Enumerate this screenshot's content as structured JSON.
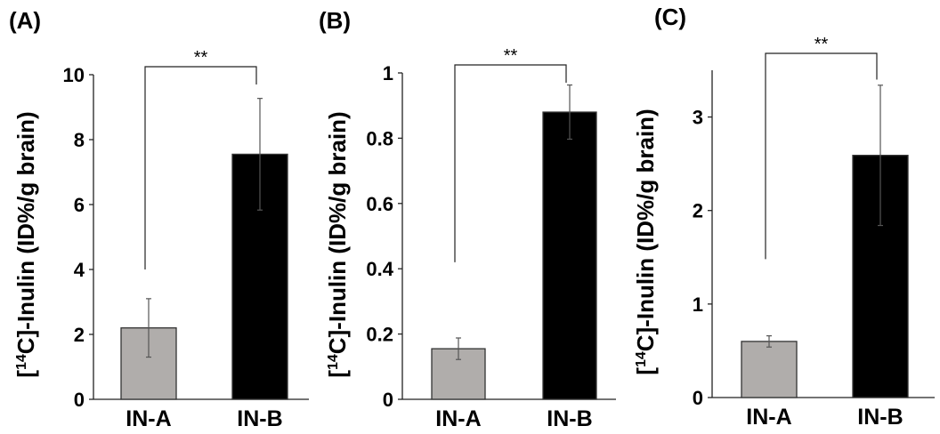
{
  "chart_data": [
    {
      "type": "bar",
      "panel_label": "(A)",
      "categories": [
        "IN-A",
        "IN-B"
      ],
      "values": [
        2.2,
        7.55
      ],
      "errors": [
        0.9,
        1.72
      ],
      "ylabel_pre": "[",
      "ylabel_sup": "14",
      "ylabel_post": "C]-Inulin (ID%/g brain)",
      "ylim": [
        0,
        10
      ],
      "yticks": [
        0,
        2,
        4,
        6,
        8,
        10
      ],
      "ytick_labels": [
        "0",
        "2",
        "4",
        "6",
        "8",
        "10"
      ],
      "significance": "**",
      "bracket_ends": [
        4.0,
        9.7
      ],
      "bar_colors": [
        "#b0adab",
        "#000000"
      ]
    },
    {
      "type": "bar",
      "panel_label": "(B)",
      "categories": [
        "IN-A",
        "IN-B"
      ],
      "values": [
        0.155,
        0.88
      ],
      "errors": [
        0.033,
        0.083
      ],
      "ylabel_pre": "[",
      "ylabel_sup": "14",
      "ylabel_post": "C]-Inulin (ID%/g brain)",
      "ylim": [
        0,
        1
      ],
      "yticks": [
        0,
        0.2,
        0.4,
        0.6,
        0.8,
        1
      ],
      "ytick_labels": [
        "0",
        "0.2",
        "0.4",
        "0.6",
        "0.8",
        "1"
      ],
      "significance": "**",
      "bracket_ends": [
        0.42,
        0.97
      ],
      "bar_colors": [
        "#b0adab",
        "#000000"
      ]
    },
    {
      "type": "bar",
      "panel_label": "(C)",
      "categories": [
        "IN-A",
        "IN-B"
      ],
      "values": [
        0.6,
        2.59
      ],
      "errors": [
        0.06,
        0.75
      ],
      "ylabel_pre": "[",
      "ylabel_sup": "14",
      "ylabel_post": "C]-Inulin (ID%/g brain)",
      "ylim": [
        0,
        3.5
      ],
      "yticks": [
        0,
        1,
        2,
        3
      ],
      "ytick_labels": [
        "0",
        "1",
        "2",
        "3"
      ],
      "significance": "**",
      "bracket_ends": [
        1.48,
        3.4
      ],
      "bar_colors": [
        "#b0adab",
        "#000000"
      ]
    }
  ]
}
